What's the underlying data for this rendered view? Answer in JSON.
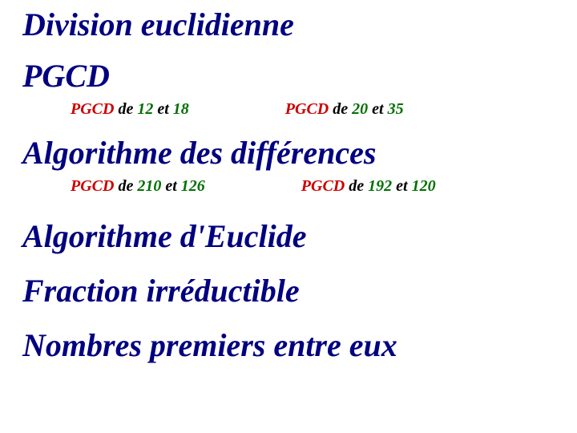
{
  "colors": {
    "heading": "#000080",
    "black": "#000000",
    "red": "#cc0000",
    "green": "#007000",
    "bg": "#ffffff"
  },
  "typography": {
    "heading_fontsize_pt": 30,
    "subitem_fontsize_pt": 15,
    "font_family": "Times New Roman",
    "style": "italic bold"
  },
  "headings": {
    "division": "Division euclidienne",
    "pgcd": "PGCD",
    "algo_diff": "Algorithme des différences",
    "algo_euclide": "Algorithme d'Euclide",
    "fraction": "Fraction irréductible",
    "nombres": "Nombres premiers entre eux"
  },
  "pgcd_examples": {
    "left": {
      "label": "PGCD",
      "mid": " de ",
      "a": "12",
      "and": " et ",
      "b": "18"
    },
    "right": {
      "label": "PGCD",
      "mid": " de ",
      "a": "20",
      "and": " et ",
      "b": "35"
    }
  },
  "diff_examples": {
    "left": {
      "label": "PGCD",
      "mid": " de ",
      "a": "210",
      "and": " et ",
      "b": "126"
    },
    "right": {
      "label": "PGCD",
      "mid": " de ",
      "a": "192",
      "and": " et ",
      "b": "120"
    }
  }
}
